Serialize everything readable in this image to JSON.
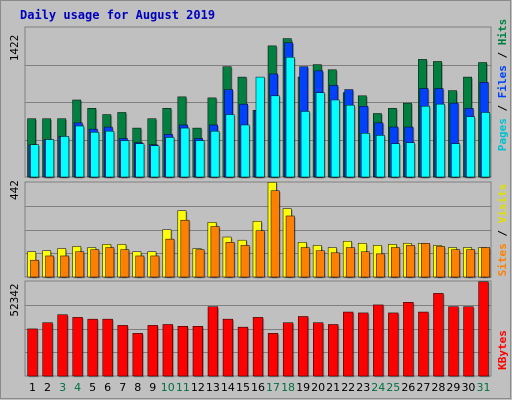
{
  "chart_data": {
    "type": "bar",
    "title": "Daily usage for August 2019",
    "categories": [
      "1",
      "2",
      "3",
      "4",
      "5",
      "6",
      "7",
      "8",
      "9",
      "10",
      "11",
      "12",
      "13",
      "14",
      "15",
      "16",
      "17",
      "18",
      "19",
      "20",
      "21",
      "22",
      "23",
      "24",
      "25",
      "26",
      "27",
      "28",
      "29",
      "30",
      "31"
    ],
    "weekend_days": [
      "3",
      "4",
      "10",
      "11",
      "17",
      "18",
      "24",
      "25",
      "31"
    ],
    "panels": {
      "top": {
        "ymax_label": "1422",
        "ymax": 1422,
        "legend": {
          "pages": "Pages",
          "files": "Files",
          "hits": "Hits",
          "separator": " / "
        },
        "series": [
          {
            "name": "Hits",
            "values": [
              560,
              560,
              560,
              740,
              660,
              600,
              620,
              470,
              560,
              660,
              770,
              470,
              760,
              1060,
              960,
              640,
              1260,
              1330,
              960,
              1080,
              1030,
              810,
              780,
              610,
              660,
              710,
              1130,
              1110,
              830,
              960,
              1100
            ]
          },
          {
            "name": "Files",
            "values": [
              310,
              360,
              390,
              520,
              460,
              480,
              370,
              330,
              310,
              410,
              500,
              370,
              500,
              840,
              700,
              640,
              990,
              1290,
              1060,
              1020,
              880,
              840,
              680,
              520,
              480,
              480,
              850,
              850,
              710,
              660,
              910
            ]
          },
          {
            "name": "Pages",
            "values": [
              310,
              360,
              390,
              490,
              430,
              440,
              350,
              320,
              300,
              380,
              470,
              350,
              440,
              600,
              500,
              960,
              780,
              1150,
              630,
              810,
              740,
              690,
              420,
              400,
              320,
              330,
              680,
              700,
              320,
              580,
              620
            ]
          }
        ]
      },
      "middle": {
        "ymax_label": "442",
        "ymax": 442,
        "legend": {
          "sites": "Sites",
          "visits": "Visits",
          "separator": " / "
        },
        "series": [
          {
            "name": "Visits",
            "values": [
              120,
              125,
              135,
              145,
              140,
              155,
              155,
              120,
              120,
              225,
              315,
              135,
              260,
              190,
              175,
              265,
              450,
              325,
              165,
              150,
              140,
              170,
              160,
              150,
              155,
              160,
              160,
              150,
              140,
              140,
              140
            ]
          },
          {
            "name": "Sites",
            "values": [
              80,
              100,
              100,
              120,
              130,
              140,
              130,
              100,
              100,
              180,
              270,
              130,
              240,
              165,
              150,
              220,
              410,
              290,
              140,
              125,
              115,
              140,
              120,
              110,
              140,
              150,
              160,
              145,
              130,
              130,
              140
            ]
          }
        ]
      },
      "bottom": {
        "ymax_label": "52342",
        "ymax": 52342,
        "legend": {
          "kbytes": "KBytes"
        },
        "series": [
          {
            "name": "KBytes",
            "values": [
              26500,
              30000,
              34500,
              33000,
              32000,
              32000,
              28500,
              24000,
              28500,
              29000,
              28000,
              28000,
              39000,
              32000,
              27500,
              33000,
              24000,
              30000,
              33500,
              30000,
              29000,
              36000,
              35500,
              40000,
              35500,
              41500,
              36000,
              46500,
              39000,
              39000,
              53000
            ]
          }
        ]
      }
    },
    "colors": {
      "background": "#c0c0c0",
      "frame": "#f0f0f0",
      "title": "#0000c0",
      "hits": "#008040",
      "files": "#0040ff",
      "pages": "#00ffff",
      "visits": "#ffff00",
      "sites": "#ff8000",
      "kbytes": "#ff0000",
      "weekday_label": "#000000",
      "weekend_label": "#007040"
    }
  }
}
